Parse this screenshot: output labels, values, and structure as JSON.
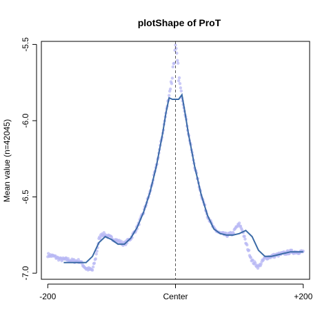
{
  "chart_data": {
    "type": "scatter",
    "title": "plotShape of ProT",
    "xlabel": "",
    "ylabel": "Mean value (n=42045)",
    "xlim": [
      -200,
      200
    ],
    "ylim": [
      -7.0,
      -5.5
    ],
    "x_ticks": [
      {
        "value": -200,
        "label": "-200"
      },
      {
        "value": 0,
        "label": "Center"
      },
      {
        "value": 200,
        "label": "+200"
      }
    ],
    "y_ticks": [
      {
        "value": -7.0,
        "label": "-7.0"
      },
      {
        "value": -6.5,
        "label": "-6.5"
      },
      {
        "value": -6.0,
        "label": "-6.0"
      },
      {
        "value": -5.5,
        "label": "-5.5"
      }
    ],
    "vertical_reference_line": {
      "x": 0,
      "style": "dashed",
      "color": "#555555"
    },
    "grid": false,
    "point_color": "#b8b8f4",
    "line_color": "#3a6aa6",
    "smooth_curve": {
      "x": [
        -175,
        -160,
        -150,
        -140,
        -130,
        -120,
        -110,
        -100,
        -90,
        -80,
        -70,
        -60,
        -50,
        -40,
        -30,
        -20,
        -15,
        -10,
        -5,
        -2,
        0,
        2,
        5,
        10,
        15,
        20,
        30,
        40,
        50,
        60,
        70,
        80,
        90,
        100,
        110,
        120,
        130,
        140,
        150,
        160,
        170,
        180,
        190,
        200
      ],
      "y": [
        -6.93,
        -6.93,
        -6.93,
        -6.93,
        -6.89,
        -6.8,
        -6.76,
        -6.78,
        -6.81,
        -6.81,
        -6.77,
        -6.7,
        -6.6,
        -6.47,
        -6.3,
        -6.08,
        -5.95,
        -5.85,
        -5.86,
        -5.86,
        -5.86,
        -5.86,
        -5.86,
        -5.83,
        -5.95,
        -6.08,
        -6.3,
        -6.48,
        -6.62,
        -6.71,
        -6.74,
        -6.75,
        -6.75,
        -6.74,
        -6.72,
        -6.76,
        -6.85,
        -6.89,
        -6.89,
        -6.88,
        -6.87,
        -6.86,
        -6.86,
        -6.86
      ]
    },
    "raw_points_profile": {
      "x": [
        -200,
        -190,
        -180,
        -170,
        -160,
        -150,
        -140,
        -130,
        -125,
        -120,
        -115,
        -110,
        -100,
        -90,
        -80,
        -70,
        -60,
        -50,
        -40,
        -30,
        -20,
        -15,
        -10,
        -6,
        -3,
        -1,
        0,
        1,
        3,
        6,
        10,
        15,
        20,
        30,
        40,
        50,
        60,
        70,
        80,
        90,
        95,
        100,
        105,
        110,
        120,
        130,
        140,
        150,
        160,
        170,
        180,
        190,
        200
      ],
      "y": [
        -6.88,
        -6.89,
        -6.91,
        -6.91,
        -6.92,
        -6.92,
        -6.97,
        -6.98,
        -6.9,
        -6.78,
        -6.74,
        -6.75,
        -6.77,
        -6.79,
        -6.81,
        -6.77,
        -6.7,
        -6.6,
        -6.47,
        -6.3,
        -6.08,
        -5.95,
        -5.83,
        -5.74,
        -5.62,
        -5.56,
        -5.53,
        -5.56,
        -5.62,
        -5.74,
        -5.84,
        -5.95,
        -6.08,
        -6.3,
        -6.48,
        -6.62,
        -6.71,
        -6.74,
        -6.75,
        -6.74,
        -6.7,
        -6.68,
        -6.72,
        -6.8,
        -6.92,
        -6.96,
        -6.9,
        -6.89,
        -6.88,
        -6.87,
        -6.86,
        -6.86,
        -6.86
      ]
    }
  }
}
